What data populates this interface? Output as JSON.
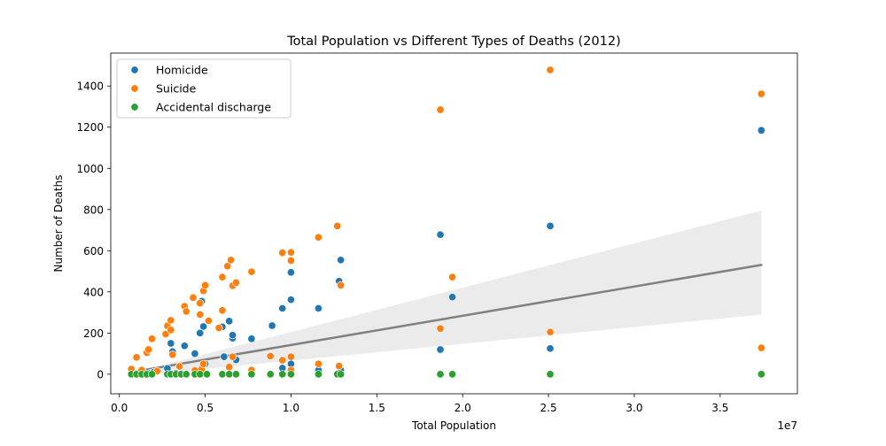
{
  "chart_data": {
    "type": "scatter",
    "title": "Total Population vs Different Types of Deaths (2012)",
    "xlabel": "Total Population",
    "ylabel": "Number of Deaths",
    "x_offset_label": "1e7",
    "xlim": [
      -0.05,
      3.95
    ],
    "ylim": [
      -95,
      1560
    ],
    "x_ticks": [
      0,
      0.5,
      1.0,
      1.5,
      2.0,
      2.5,
      3.0,
      3.5
    ],
    "x_tick_labels": [
      "0.0",
      "0.5",
      "1.0",
      "1.5",
      "2.0",
      "2.5",
      "3.0",
      "3.5"
    ],
    "y_ticks": [
      0,
      200,
      400,
      600,
      800,
      1000,
      1200,
      1400
    ],
    "y_tick_labels": [
      "0",
      "200",
      "400",
      "600",
      "800",
      "1000",
      "1200",
      "1400"
    ],
    "grid": false,
    "legend_position": "top-left",
    "series": [
      {
        "name": "Homicide",
        "color": "#1f77b4",
        "points": [
          [
            0.07,
            25
          ],
          [
            0.09,
            5
          ],
          [
            0.1,
            3
          ],
          [
            0.12,
            2
          ],
          [
            0.14,
            8
          ],
          [
            0.18,
            5
          ],
          [
            0.2,
            10
          ],
          [
            0.28,
            28
          ],
          [
            0.3,
            150
          ],
          [
            0.31,
            110
          ],
          [
            0.33,
            5
          ],
          [
            0.38,
            138
          ],
          [
            0.44,
            100
          ],
          [
            0.47,
            200
          ],
          [
            0.48,
            355
          ],
          [
            0.49,
            232
          ],
          [
            0.5,
            50
          ],
          [
            0.6,
            230
          ],
          [
            0.61,
            85
          ],
          [
            0.64,
            258
          ],
          [
            0.66,
            175
          ],
          [
            0.66,
            190
          ],
          [
            0.68,
            70
          ],
          [
            0.77,
            172
          ],
          [
            0.89,
            236
          ],
          [
            0.95,
            320
          ],
          [
            0.95,
            30
          ],
          [
            1.0,
            495
          ],
          [
            1.0,
            362
          ],
          [
            1.0,
            50
          ],
          [
            1.16,
            320
          ],
          [
            1.16,
            20
          ],
          [
            1.28,
            452
          ],
          [
            1.29,
            555
          ],
          [
            1.29,
            20
          ],
          [
            1.87,
            678
          ],
          [
            1.87,
            120
          ],
          [
            1.94,
            375
          ],
          [
            2.51,
            720
          ],
          [
            2.51,
            125
          ],
          [
            3.74,
            1185
          ]
        ]
      },
      {
        "name": "Suicide",
        "color": "#ff7f0e",
        "points": [
          [
            0.07,
            25
          ],
          [
            0.1,
            82
          ],
          [
            0.13,
            20
          ],
          [
            0.16,
            105
          ],
          [
            0.17,
            120
          ],
          [
            0.19,
            172
          ],
          [
            0.22,
            15
          ],
          [
            0.27,
            195
          ],
          [
            0.28,
            235
          ],
          [
            0.3,
            215
          ],
          [
            0.3,
            262
          ],
          [
            0.31,
            95
          ],
          [
            0.35,
            38
          ],
          [
            0.38,
            330
          ],
          [
            0.39,
            305
          ],
          [
            0.43,
            372
          ],
          [
            0.44,
            18
          ],
          [
            0.47,
            345
          ],
          [
            0.47,
            290
          ],
          [
            0.48,
            25
          ],
          [
            0.49,
            50
          ],
          [
            0.49,
            405
          ],
          [
            0.5,
            432
          ],
          [
            0.52,
            260
          ],
          [
            0.58,
            225
          ],
          [
            0.6,
            310
          ],
          [
            0.6,
            472
          ],
          [
            0.63,
            525
          ],
          [
            0.64,
            35
          ],
          [
            0.65,
            555
          ],
          [
            0.66,
            430
          ],
          [
            0.66,
            85
          ],
          [
            0.68,
            445
          ],
          [
            0.77,
            498
          ],
          [
            0.77,
            20
          ],
          [
            0.88,
            88
          ],
          [
            0.95,
            590
          ],
          [
            0.95,
            68
          ],
          [
            1.0,
            592
          ],
          [
            1.0,
            552
          ],
          [
            1.0,
            85
          ],
          [
            1.0,
            20
          ],
          [
            1.16,
            665
          ],
          [
            1.16,
            50
          ],
          [
            1.27,
            720
          ],
          [
            1.28,
            40
          ],
          [
            1.29,
            432
          ],
          [
            1.87,
            1285
          ],
          [
            1.87,
            222
          ],
          [
            1.94,
            472
          ],
          [
            2.51,
            1478
          ],
          [
            2.51,
            205
          ],
          [
            3.74,
            1362
          ],
          [
            3.74,
            128
          ]
        ]
      },
      {
        "name": "Accidental discharge",
        "color": "#2ca02c",
        "points": [
          [
            0.07,
            0
          ],
          [
            0.1,
            0
          ],
          [
            0.13,
            0
          ],
          [
            0.16,
            0
          ],
          [
            0.19,
            0
          ],
          [
            0.28,
            0
          ],
          [
            0.3,
            0
          ],
          [
            0.33,
            0
          ],
          [
            0.36,
            0
          ],
          [
            0.39,
            0
          ],
          [
            0.44,
            0
          ],
          [
            0.47,
            0
          ],
          [
            0.51,
            0
          ],
          [
            0.6,
            0
          ],
          [
            0.64,
            0
          ],
          [
            0.68,
            0
          ],
          [
            0.77,
            0
          ],
          [
            0.88,
            0
          ],
          [
            0.95,
            0
          ],
          [
            1.0,
            0
          ],
          [
            1.16,
            0
          ],
          [
            1.27,
            0
          ],
          [
            1.29,
            0
          ],
          [
            1.87,
            0
          ],
          [
            1.94,
            0
          ],
          [
            2.51,
            0
          ],
          [
            3.74,
            0
          ]
        ]
      }
    ],
    "regression": {
      "color": "#808080",
      "band_color": "#ebebeb",
      "x_range": [
        0.07,
        3.74
      ],
      "intercept": 0,
      "slope": 142,
      "ci_left": [
        -10,
        5
      ],
      "ci_right": [
        290,
        795
      ]
    }
  }
}
